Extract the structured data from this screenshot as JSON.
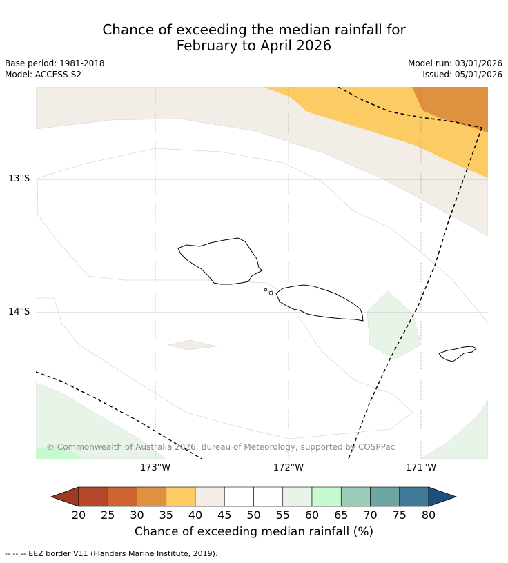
{
  "title": {
    "line1": "Chance of exceeding the median rainfall for",
    "line2": "February to April 2026"
  },
  "meta": {
    "base_period": "Base period: 1981-2018",
    "model": "Model: ACCESS-S2",
    "model_run": "Model run: 03/01/2026",
    "issued": "Issued: 05/01/2026"
  },
  "map": {
    "lat_labels": [
      "13°S",
      "14°S"
    ],
    "lon_labels": [
      "173°W",
      "172°W",
      "171°W"
    ],
    "copyright": "© Commonwealth of Australia 2026, Bureau of Meteorology, supported by COSPPac",
    "colors": {
      "category_40_45": "#f2ede6",
      "category_35_40": "#fccb63",
      "category_30_35": "#e0913f",
      "category_55_60": "#e8f4e8",
      "category_60_65": "#c7fbcf"
    }
  },
  "colorbar": {
    "title": "Chance of exceeding median rainfall (%)",
    "ticks": [
      "20",
      "25",
      "30",
      "35",
      "40",
      "45",
      "50",
      "55",
      "60",
      "65",
      "70",
      "75",
      "80"
    ],
    "colors": [
      "#9e3a21",
      "#b5482a",
      "#ce6531",
      "#e0913f",
      "#fccb63",
      "#f2ede6",
      "#ffffff",
      "#ffffff",
      "#e8f4e8",
      "#c7fbcf",
      "#9acdb7",
      "#6ea6a4",
      "#3f7b99",
      "#1b4f80"
    ]
  },
  "footnote": "--  --  -- EEZ border V11 (Flanders Marine Institute, 2019)."
}
